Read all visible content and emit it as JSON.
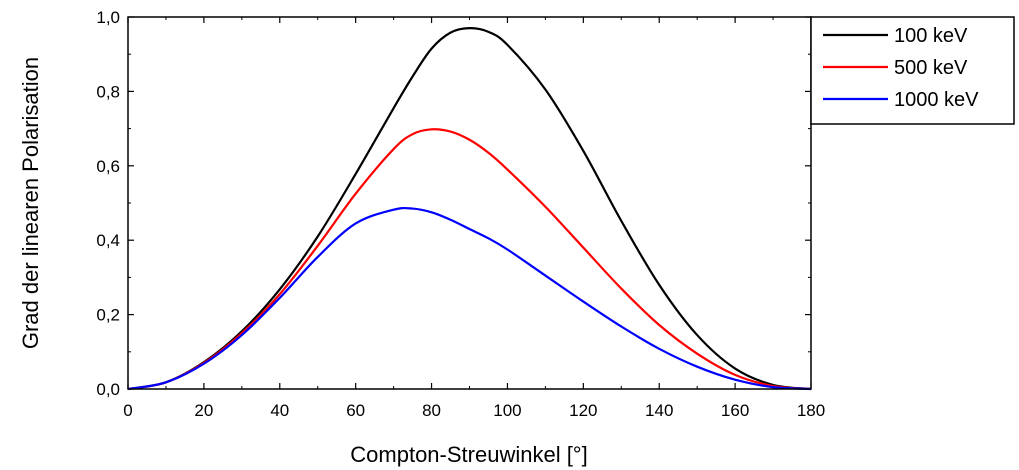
{
  "chart_data": {
    "type": "line",
    "xlabel": "Compton-Streuwinkel [°]",
    "ylabel": "Grad der linearen Polarisation",
    "xlim": [
      0,
      180
    ],
    "ylim": [
      0,
      1.0
    ],
    "x_ticks": [
      0,
      20,
      40,
      60,
      80,
      100,
      120,
      140,
      160,
      180
    ],
    "x_tick_labels": [
      "0",
      "20",
      "40",
      "60",
      "80",
      "100",
      "120",
      "140",
      "160",
      "180"
    ],
    "y_ticks": [
      0,
      0.2,
      0.4,
      0.6,
      0.8,
      1.0
    ],
    "y_tick_labels": [
      "0,0",
      "0,2",
      "0,4",
      "0,6",
      "0,8",
      "1,0"
    ],
    "grid": false,
    "legend_position": "top-right",
    "x": [
      0,
      10,
      20,
      30,
      40,
      50,
      60,
      70,
      75,
      80,
      85,
      90,
      95,
      100,
      110,
      120,
      130,
      140,
      150,
      160,
      170,
      180
    ],
    "series": [
      {
        "name": "100 keV",
        "color": "#000000",
        "values": [
          0,
          0.018,
          0.072,
          0.155,
          0.268,
          0.41,
          0.578,
          0.755,
          0.84,
          0.915,
          0.958,
          0.97,
          0.96,
          0.925,
          0.805,
          0.64,
          0.452,
          0.28,
          0.145,
          0.055,
          0.011,
          0
        ]
      },
      {
        "name": "500 keV",
        "color": "#ff0000",
        "values": [
          0,
          0.018,
          0.07,
          0.15,
          0.255,
          0.385,
          0.525,
          0.645,
          0.685,
          0.698,
          0.692,
          0.67,
          0.635,
          0.59,
          0.49,
          0.38,
          0.27,
          0.172,
          0.095,
          0.038,
          0.008,
          0
        ]
      },
      {
        "name": "1000 keV",
        "color": "#0000ff",
        "values": [
          0,
          0.018,
          0.068,
          0.145,
          0.245,
          0.355,
          0.445,
          0.482,
          0.485,
          0.475,
          0.455,
          0.43,
          0.405,
          0.375,
          0.305,
          0.235,
          0.168,
          0.108,
          0.06,
          0.025,
          0.005,
          0
        ]
      }
    ]
  }
}
